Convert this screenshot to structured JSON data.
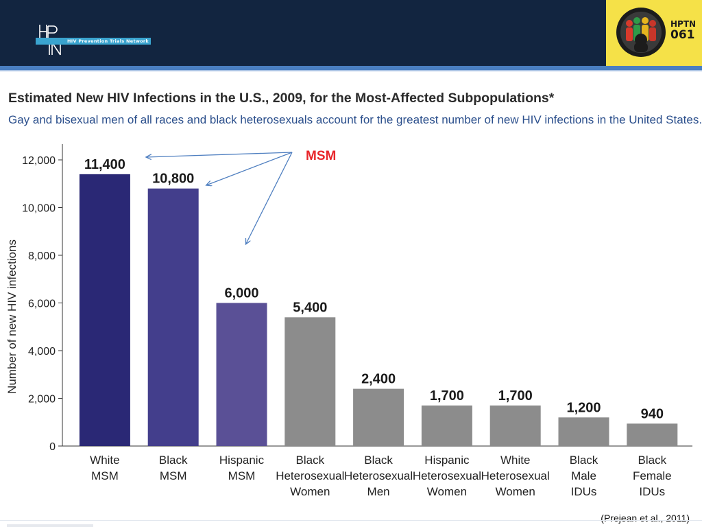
{
  "header": {
    "logo_text": "HIV Prevention Trials Network",
    "badge_line1": "HPTN",
    "badge_line2": "061",
    "colors": {
      "band": "#122540",
      "accent": "#4a7fc1",
      "badge": "#f5e148"
    }
  },
  "chart_data": {
    "type": "bar",
    "title": "Estimated New HIV Infections in the U.S., 2009, for the Most-Affected Subpopulations*",
    "subtitle": "Gay and bisexual men of all races and black heterosexuals account for the greatest number of new HIV infections in the United States.",
    "ylabel": "Number of new HIV infections",
    "ylim": [
      0,
      12000
    ],
    "yticks": [
      0,
      2000,
      4000,
      6000,
      8000,
      10000,
      12000
    ],
    "ytick_labels": [
      "0",
      "2,000",
      "4,000",
      "6,000",
      "8,000",
      "10,000",
      "12,000"
    ],
    "categories": [
      [
        "White",
        "MSM"
      ],
      [
        "Black",
        "MSM"
      ],
      [
        "Hispanic",
        "MSM"
      ],
      [
        "Black",
        "Heterosexual",
        "Women"
      ],
      [
        "Black",
        "Heterosexual",
        "Men"
      ],
      [
        "Hispanic",
        "Heterosexual",
        "Women"
      ],
      [
        "White",
        "Heterosexual",
        "Women"
      ],
      [
        "Black",
        "Male",
        "IDUs"
      ],
      [
        "Black",
        "Female",
        "IDUs"
      ]
    ],
    "values": [
      11400,
      10800,
      6000,
      5400,
      2400,
      1700,
      1700,
      1200,
      940
    ],
    "value_labels": [
      "11,400",
      "10,800",
      "6,000",
      "5,400",
      "2,400",
      "1,700",
      "1,700",
      "1,200",
      "940"
    ],
    "bar_colors": [
      "#2a2875",
      "#433e8c",
      "#5a5096",
      "#8c8c8c",
      "#8c8c8c",
      "#8c8c8c",
      "#8c8c8c",
      "#8c8c8c",
      "#8c8c8c"
    ],
    "grid": false,
    "annotation": {
      "text": "MSM",
      "color": "#e8262b",
      "arrow_color": "#4f7fc0",
      "points_to": [
        0,
        1,
        2
      ]
    }
  },
  "citation": "(Prejean et al., 2011)"
}
